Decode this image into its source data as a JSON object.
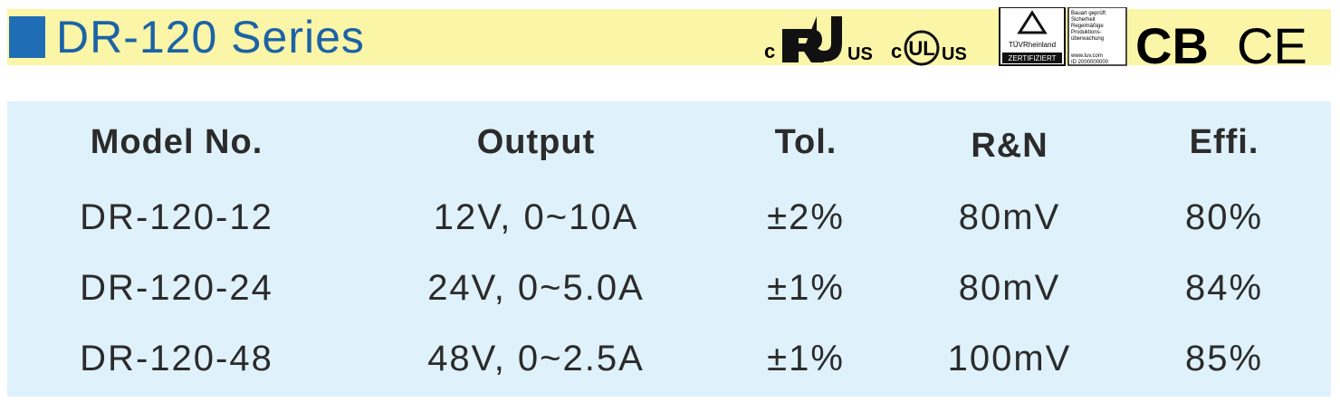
{
  "header": {
    "title": "DR-120 Series"
  },
  "certifications": {
    "ul_recognized": {
      "prefix": "c",
      "suffix": "US"
    },
    "ul_listed": {
      "prefix": "c",
      "mark": "UL",
      "suffix": "US"
    },
    "tuv": {
      "name": "TÜVRheinland",
      "badge": "ZERTIFIZIERT",
      "lines": [
        "Bauart geprüft",
        "Sicherheit",
        "Regelmäßige",
        "Produktions-",
        "überwachung"
      ],
      "web": "www.tuv.com",
      "id": "ID 2000000000"
    },
    "cb": "CB",
    "ce": "CE"
  },
  "table": {
    "columns": [
      "Model No.",
      "Output",
      "Tol.",
      "R&N",
      "Effi."
    ],
    "rows": [
      [
        "DR-120-12",
        "12V, 0~10A",
        "±2%",
        "80mV",
        "80%"
      ],
      [
        "DR-120-24",
        "24V, 0~5.0A",
        "±1%",
        "80mV",
        "84%"
      ],
      [
        "DR-120-48",
        "48V, 0~2.5A",
        "±1%",
        "100mV",
        "85%"
      ]
    ]
  }
}
